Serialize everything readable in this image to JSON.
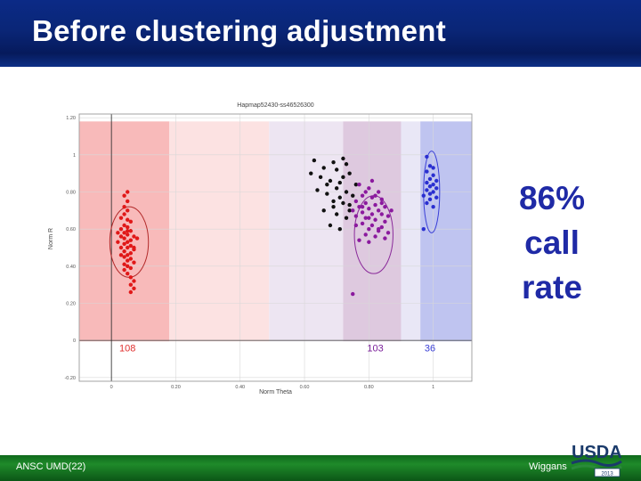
{
  "slide": {
    "title": "Before clustering adjustment",
    "footer_left": "ANSC UMD(22)",
    "footer_right": "Wiggans",
    "logo_text": "USDA",
    "logo_year": "2013",
    "callout_lines": [
      "86%",
      "call",
      "rate"
    ]
  },
  "chart_data": {
    "type": "scatter",
    "title": "Hapmap52430-ss46526300",
    "xlabel": "Norm Theta",
    "ylabel": "Norm R",
    "xlim": [
      -0.1,
      1.12
    ],
    "ylim": [
      -0.22,
      1.22
    ],
    "x_ticks": [
      0,
      0.2,
      0.4,
      0.6,
      0.8,
      1
    ],
    "x_tick_labels": [
      "0",
      "0.20",
      "0.40",
      "0.60",
      "0.80",
      "1"
    ],
    "y_ticks": [
      -0.2,
      0,
      0.2,
      0.4,
      0.6,
      0.8,
      1,
      1.2
    ],
    "y_tick_labels": [
      "-0.20",
      "0",
      "0.20",
      "0.40",
      "0.60",
      "0.80",
      "1",
      "1.20"
    ],
    "regions": [
      {
        "name": "AA",
        "x0": -0.1,
        "x1": 0.18,
        "color": "#f8b6b6"
      },
      {
        "name": "AA-light",
        "x0": 0.18,
        "x1": 0.49,
        "color": "#fce0e0"
      },
      {
        "name": "AB-light",
        "x0": 0.49,
        "x1": 0.72,
        "color": "#ece4f1"
      },
      {
        "name": "AB",
        "x0": 0.72,
        "x1": 0.9,
        "color": "#dcc6dd"
      },
      {
        "name": "BB-light",
        "x0": 0.9,
        "x1": 0.96,
        "color": "#e8e6f5"
      },
      {
        "name": "BB",
        "x0": 0.96,
        "x1": 1.12,
        "color": "#bcc1ef"
      }
    ],
    "cluster_counts": [
      {
        "label": "108",
        "x": 0.05,
        "color": "#e0302f"
      },
      {
        "label": "103",
        "x": 0.82,
        "color": "#7a1f9a"
      },
      {
        "label": "36",
        "x": 0.99,
        "color": "#3a3fd6"
      }
    ],
    "ellipses": [
      {
        "cx": 0.055,
        "cy": 0.53,
        "rx": 0.06,
        "ry": 0.19,
        "color": "#b22a2a"
      },
      {
        "cx": 0.815,
        "cy": 0.57,
        "rx": 0.06,
        "ry": 0.21,
        "color": "#8a2a9a"
      },
      {
        "cx": 0.995,
        "cy": 0.8,
        "rx": 0.025,
        "ry": 0.22,
        "color": "#3a3fd6"
      }
    ],
    "series": [
      {
        "name": "",
        "color": "#e01818",
        "points": [
          [
            0.05,
            0.8
          ],
          [
            0.04,
            0.78
          ],
          [
            0.05,
            0.75
          ],
          [
            0.04,
            0.72
          ],
          [
            0.05,
            0.7
          ],
          [
            0.04,
            0.68
          ],
          [
            0.03,
            0.66
          ],
          [
            0.05,
            0.65
          ],
          [
            0.06,
            0.64
          ],
          [
            0.04,
            0.62
          ],
          [
            0.05,
            0.61
          ],
          [
            0.03,
            0.6
          ],
          [
            0.06,
            0.59
          ],
          [
            0.04,
            0.58
          ],
          [
            0.05,
            0.57
          ],
          [
            0.07,
            0.56
          ],
          [
            0.03,
            0.56
          ],
          [
            0.04,
            0.55
          ],
          [
            0.06,
            0.54
          ],
          [
            0.05,
            0.53
          ],
          [
            0.02,
            0.53
          ],
          [
            0.04,
            0.52
          ],
          [
            0.06,
            0.51
          ],
          [
            0.05,
            0.5
          ],
          [
            0.03,
            0.5
          ],
          [
            0.07,
            0.49
          ],
          [
            0.04,
            0.48
          ],
          [
            0.06,
            0.47
          ],
          [
            0.05,
            0.46
          ],
          [
            0.03,
            0.46
          ],
          [
            0.04,
            0.45
          ],
          [
            0.06,
            0.44
          ],
          [
            0.05,
            0.43
          ],
          [
            0.07,
            0.42
          ],
          [
            0.04,
            0.41
          ],
          [
            0.05,
            0.4
          ],
          [
            0.06,
            0.39
          ],
          [
            0.04,
            0.38
          ],
          [
            0.05,
            0.36
          ],
          [
            0.06,
            0.34
          ],
          [
            0.07,
            0.32
          ],
          [
            0.06,
            0.3
          ],
          [
            0.07,
            0.28
          ],
          [
            0.06,
            0.26
          ],
          [
            0.07,
            0.5
          ],
          [
            0.02,
            0.58
          ],
          [
            0.08,
            0.55
          ],
          [
            0.05,
            0.59
          ]
        ]
      },
      {
        "name": "",
        "color": "#111111",
        "points": [
          [
            0.63,
            0.97
          ],
          [
            0.66,
            0.93
          ],
          [
            0.69,
            0.96
          ],
          [
            0.7,
            0.92
          ],
          [
            0.72,
            0.98
          ],
          [
            0.74,
            0.9
          ],
          [
            0.65,
            0.88
          ],
          [
            0.68,
            0.86
          ],
          [
            0.71,
            0.85
          ],
          [
            0.7,
            0.82
          ],
          [
            0.73,
            0.8
          ],
          [
            0.67,
            0.79
          ],
          [
            0.69,
            0.75
          ],
          [
            0.72,
            0.74
          ],
          [
            0.74,
            0.73
          ],
          [
            0.66,
            0.7
          ],
          [
            0.7,
            0.68
          ],
          [
            0.73,
            0.66
          ],
          [
            0.68,
            0.62
          ],
          [
            0.71,
            0.6
          ],
          [
            0.62,
            0.9
          ],
          [
            0.64,
            0.81
          ],
          [
            0.75,
            0.78
          ],
          [
            0.76,
            0.84
          ],
          [
            0.72,
            0.88
          ],
          [
            0.73,
            0.95
          ],
          [
            0.71,
            0.77
          ],
          [
            0.74,
            0.7
          ],
          [
            0.69,
            0.72
          ],
          [
            0.67,
            0.84
          ]
        ]
      },
      {
        "name": "",
        "color": "#8b1a9e",
        "points": [
          [
            0.77,
            0.84
          ],
          [
            0.8,
            0.82
          ],
          [
            0.83,
            0.8
          ],
          [
            0.78,
            0.78
          ],
          [
            0.81,
            0.77
          ],
          [
            0.84,
            0.76
          ],
          [
            0.76,
            0.75
          ],
          [
            0.79,
            0.74
          ],
          [
            0.82,
            0.73
          ],
          [
            0.85,
            0.72
          ],
          [
            0.77,
            0.72
          ],
          [
            0.8,
            0.71
          ],
          [
            0.83,
            0.7
          ],
          [
            0.78,
            0.69
          ],
          [
            0.81,
            0.68
          ],
          [
            0.84,
            0.68
          ],
          [
            0.86,
            0.67
          ],
          [
            0.76,
            0.67
          ],
          [
            0.79,
            0.66
          ],
          [
            0.82,
            0.65
          ],
          [
            0.85,
            0.64
          ],
          [
            0.78,
            0.63
          ],
          [
            0.81,
            0.62
          ],
          [
            0.84,
            0.61
          ],
          [
            0.8,
            0.6
          ],
          [
            0.83,
            0.59
          ],
          [
            0.86,
            0.58
          ],
          [
            0.79,
            0.57
          ],
          [
            0.82,
            0.56
          ],
          [
            0.85,
            0.55
          ],
          [
            0.77,
            0.54
          ],
          [
            0.8,
            0.53
          ],
          [
            0.83,
            0.6
          ],
          [
            0.75,
            0.7
          ],
          [
            0.87,
            0.7
          ],
          [
            0.76,
            0.62
          ],
          [
            0.84,
            0.74
          ],
          [
            0.82,
            0.78
          ],
          [
            0.79,
            0.8
          ],
          [
            0.81,
            0.86
          ],
          [
            0.78,
            0.72
          ],
          [
            0.8,
            0.66
          ],
          [
            0.75,
            0.25
          ]
        ]
      },
      {
        "name": "",
        "color": "#2a2fd0",
        "points": [
          [
            0.98,
            0.99
          ],
          [
            0.99,
            0.94
          ],
          [
            1.0,
            0.93
          ],
          [
            0.98,
            0.91
          ],
          [
            1.0,
            0.89
          ],
          [
            0.99,
            0.87
          ],
          [
            1.01,
            0.86
          ],
          [
            0.98,
            0.85
          ],
          [
            1.0,
            0.84
          ],
          [
            0.99,
            0.83
          ],
          [
            1.01,
            0.82
          ],
          [
            0.98,
            0.81
          ],
          [
            1.0,
            0.8
          ],
          [
            0.99,
            0.79
          ],
          [
            0.97,
            0.78
          ],
          [
            1.01,
            0.77
          ],
          [
            0.99,
            0.76
          ],
          [
            0.98,
            0.74
          ],
          [
            1.0,
            0.72
          ],
          [
            0.97,
            0.6
          ]
        ]
      }
    ]
  }
}
